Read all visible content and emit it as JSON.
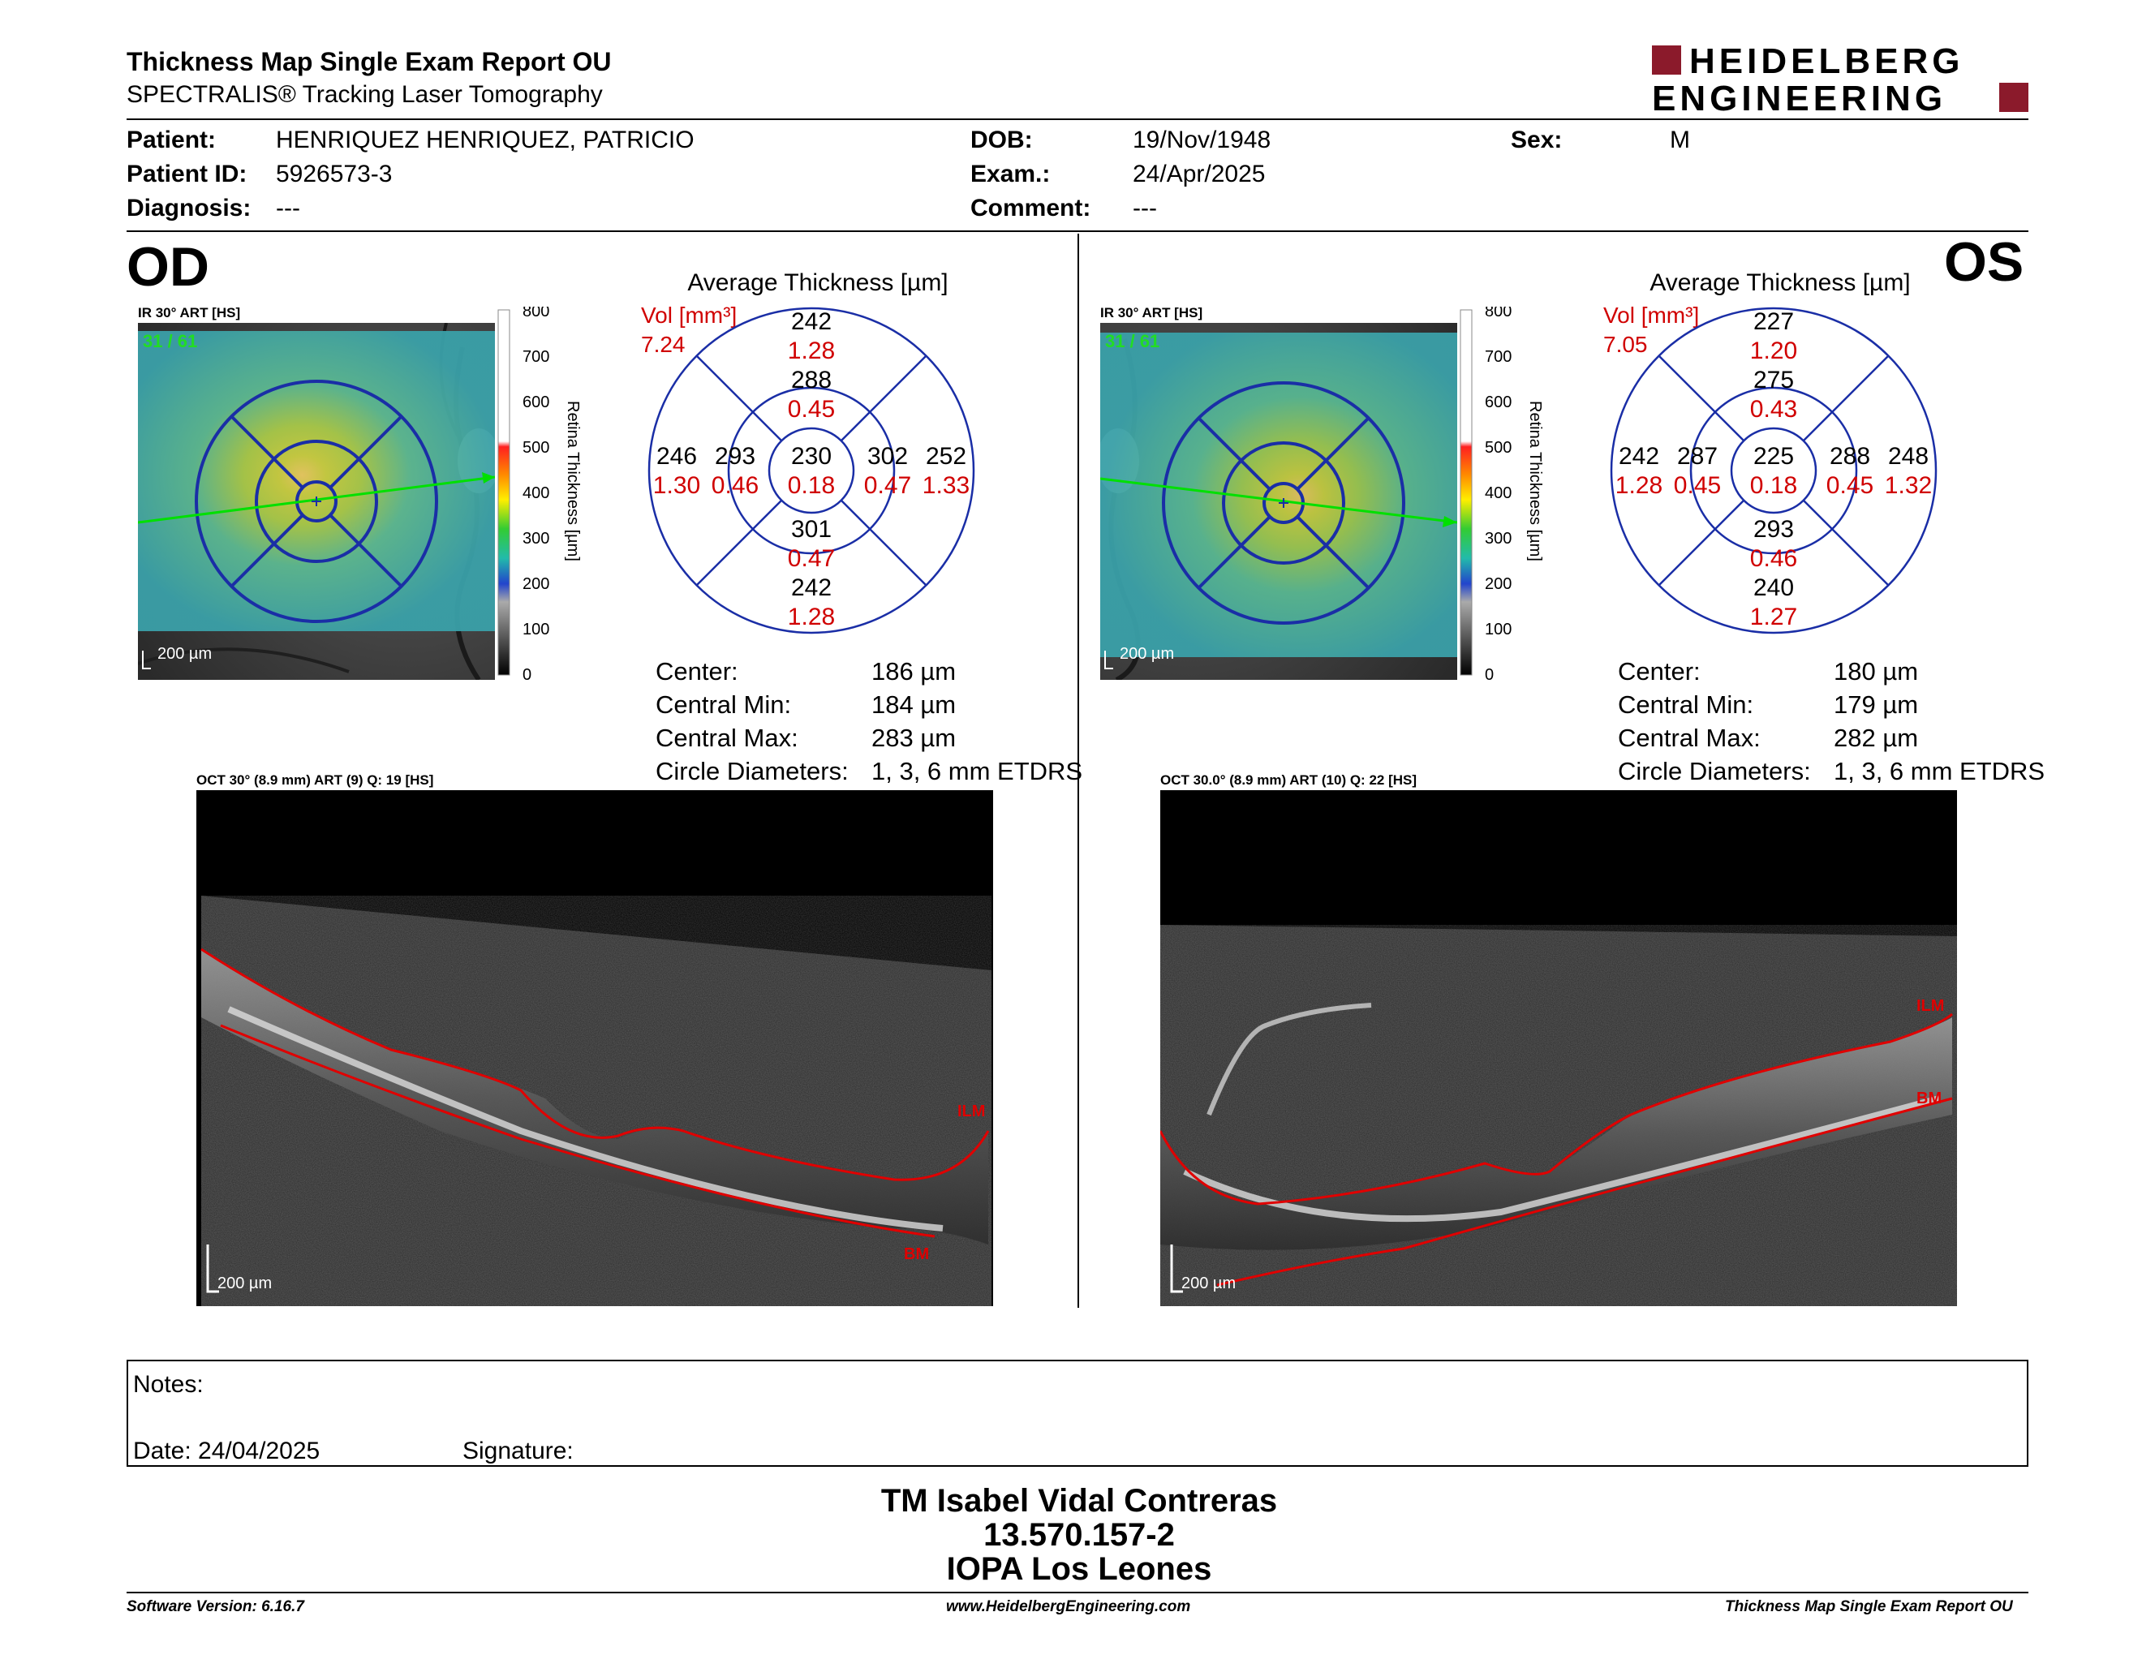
{
  "header": {
    "title": "Thickness Map Single Exam Report OU",
    "subtitle": "SPECTRALIS® Tracking Laser Tomography",
    "logo_line1": "HEIDELBERG",
    "logo_line2": "ENGINEERING"
  },
  "patient": {
    "patient_label": "Patient:",
    "patient_value": "HENRIQUEZ HENRIQUEZ, PATRICIO",
    "id_label": "Patient ID:",
    "id_value": "5926573-3",
    "diagnosis_label": "Diagnosis:",
    "diagnosis_value": "---",
    "dob_label": "DOB:",
    "dob_value": "19/Nov/1948",
    "exam_label": "Exam.:",
    "exam_value": "24/Apr/2025",
    "comment_label": "Comment:",
    "comment_value": "---",
    "sex_label": "Sex:",
    "sex_value": "M"
  },
  "od": {
    "eye": "OD",
    "ir_label": "IR 30° ART [HS]",
    "frames": "31 / 61",
    "scale": "200 µm",
    "colorbar_ticks": [
      "800",
      "700",
      "600",
      "500",
      "400",
      "300",
      "200",
      "100",
      "0"
    ],
    "colorbar_title": "Retina Thickness [µm]",
    "avg_title": "Average Thickness [µm]",
    "vol_label": "Vol [mm³]",
    "vol_total": "7.24",
    "sectors": {
      "outer_sup": {
        "t": "242",
        "v": "1.28"
      },
      "inner_sup": {
        "t": "288",
        "v": "0.45"
      },
      "outer_left": {
        "t": "246",
        "v": "1.30"
      },
      "inner_left": {
        "t": "293",
        "v": "0.46"
      },
      "center": {
        "t": "230",
        "v": "0.18"
      },
      "inner_right": {
        "t": "302",
        "v": "0.47"
      },
      "outer_right": {
        "t": "252",
        "v": "1.33"
      },
      "inner_inf": {
        "t": "301",
        "v": "0.47"
      },
      "outer_inf": {
        "t": "242",
        "v": "1.28"
      }
    },
    "stats": {
      "center_label": "Center:",
      "center_value": "186 µm",
      "min_label": "Central Min:",
      "min_value": "184 µm",
      "max_label": "Central Max:",
      "max_value": "283 µm",
      "diam_label": "Circle Diameters:",
      "diam_value": "1, 3, 6 mm ETDRS"
    },
    "oct_label": "OCT 30° (8.9 mm) ART (9) Q: 19 [HS]",
    "oct_ilm": "ILM",
    "oct_bm": "BM",
    "oct_scale": "200 µm"
  },
  "os": {
    "eye": "OS",
    "ir_label": "IR 30° ART [HS]",
    "frames": "31 / 61",
    "scale": "200 µm",
    "colorbar_ticks": [
      "800",
      "700",
      "600",
      "500",
      "400",
      "300",
      "200",
      "100",
      "0"
    ],
    "colorbar_title": "Retina Thickness [µm]",
    "avg_title": "Average Thickness [µm]",
    "vol_label": "Vol [mm³]",
    "vol_total": "7.05",
    "sectors": {
      "outer_sup": {
        "t": "227",
        "v": "1.20"
      },
      "inner_sup": {
        "t": "275",
        "v": "0.43"
      },
      "outer_left": {
        "t": "242",
        "v": "1.28"
      },
      "inner_left": {
        "t": "287",
        "v": "0.45"
      },
      "center": {
        "t": "225",
        "v": "0.18"
      },
      "inner_right": {
        "t": "288",
        "v": "0.45"
      },
      "outer_right": {
        "t": "248",
        "v": "1.32"
      },
      "inner_inf": {
        "t": "293",
        "v": "0.46"
      },
      "outer_inf": {
        "t": "240",
        "v": "1.27"
      }
    },
    "stats": {
      "center_label": "Center:",
      "center_value": "180 µm",
      "min_label": "Central Min:",
      "min_value": "179 µm",
      "max_label": "Central Max:",
      "max_value": "282 µm",
      "diam_label": "Circle Diameters:",
      "diam_value": "1, 3, 6 mm ETDRS"
    },
    "oct_label": "OCT 30.0° (8.9 mm) ART (10) Q: 22 [HS]",
    "oct_ilm": "ILM",
    "oct_bm": "BM",
    "oct_scale": "200 µm"
  },
  "notes": {
    "notes_label": "Notes:",
    "date_label": "Date: 24/04/2025",
    "signature_label": "Signature:"
  },
  "signature_block": {
    "line1": "TM Isabel Vidal Contreras",
    "line2": "13.570.157-2",
    "line3": "IOPA Los Leones"
  },
  "footer": {
    "left": "Software Version: 6.16.7",
    "center": "www.HeidelbergEngineering.com",
    "right": "Thickness Map Single Exam Report OU"
  },
  "colors": {
    "accent_red": "#d00000",
    "logo_red": "#8b1a2b",
    "grid_blue": "#1a2ea6",
    "scan_green": "#00e000"
  }
}
